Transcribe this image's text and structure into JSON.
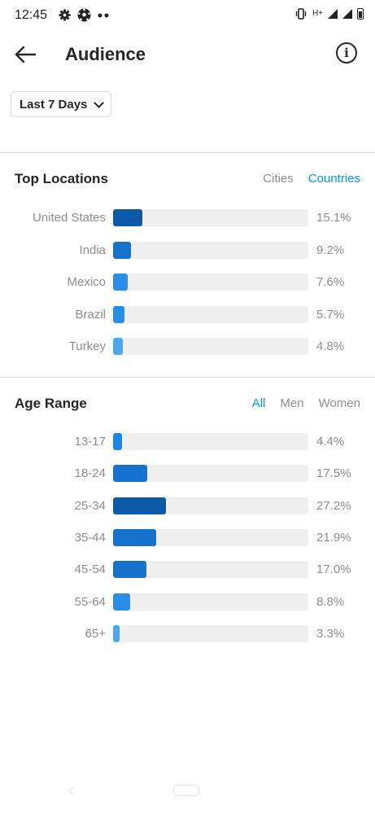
{
  "status_bar": {
    "time": "12:45",
    "left_icons": [
      "gear-icon",
      "soccer-ball-icon",
      "more-dots-icon"
    ],
    "right_icons": [
      "vibrate-icon",
      "hplus-network-icon",
      "signal-icon",
      "signal-icon",
      "battery-icon"
    ],
    "network_label": "H+"
  },
  "header": {
    "title": "Audience",
    "back_icon": "arrow-left-icon",
    "info_icon": "info-icon",
    "info_glyph": "i"
  },
  "range_dropdown": {
    "selected": "Last 7 Days"
  },
  "top_locations": {
    "title": "Top Locations",
    "tabs": [
      {
        "label": "Cities",
        "active": false
      },
      {
        "label": "Countries",
        "active": true
      }
    ],
    "items": [
      {
        "label": "United States",
        "value": "15.1%",
        "fraction": 0.151,
        "color": "#0a5aa8"
      },
      {
        "label": "India",
        "value": "9.2%",
        "fraction": 0.092,
        "color": "#1672cc"
      },
      {
        "label": "Mexico",
        "value": "7.6%",
        "fraction": 0.076,
        "color": "#2a8ee6"
      },
      {
        "label": "Brazil",
        "value": "5.7%",
        "fraction": 0.057,
        "color": "#2a8ee6"
      },
      {
        "label": "Turkey",
        "value": "4.8%",
        "fraction": 0.048,
        "color": "#4aa8f0"
      }
    ]
  },
  "age_range": {
    "title": "Age Range",
    "tabs": [
      {
        "label": "All",
        "active": true
      },
      {
        "label": "Men",
        "active": false
      },
      {
        "label": "Women",
        "active": false
      }
    ],
    "items": [
      {
        "label": "13-17",
        "value": "4.4%",
        "fraction": 0.044,
        "color": "#1b86e6"
      },
      {
        "label": "18-24",
        "value": "17.5%",
        "fraction": 0.175,
        "color": "#1672cc"
      },
      {
        "label": "25-34",
        "value": "27.2%",
        "fraction": 0.272,
        "color": "#0a5aa8"
      },
      {
        "label": "35-44",
        "value": "21.9%",
        "fraction": 0.219,
        "color": "#1672cc"
      },
      {
        "label": "45-54",
        "value": "17.0%",
        "fraction": 0.17,
        "color": "#1672cc"
      },
      {
        "label": "55-64",
        "value": "8.8%",
        "fraction": 0.088,
        "color": "#2a8ee6"
      },
      {
        "label": "65+",
        "value": "3.3%",
        "fraction": 0.033,
        "color": "#4aa8f0"
      }
    ]
  },
  "colors": {
    "accent": "#0095f6",
    "muted_text": "#8e8e8e",
    "track": "#efefef"
  }
}
